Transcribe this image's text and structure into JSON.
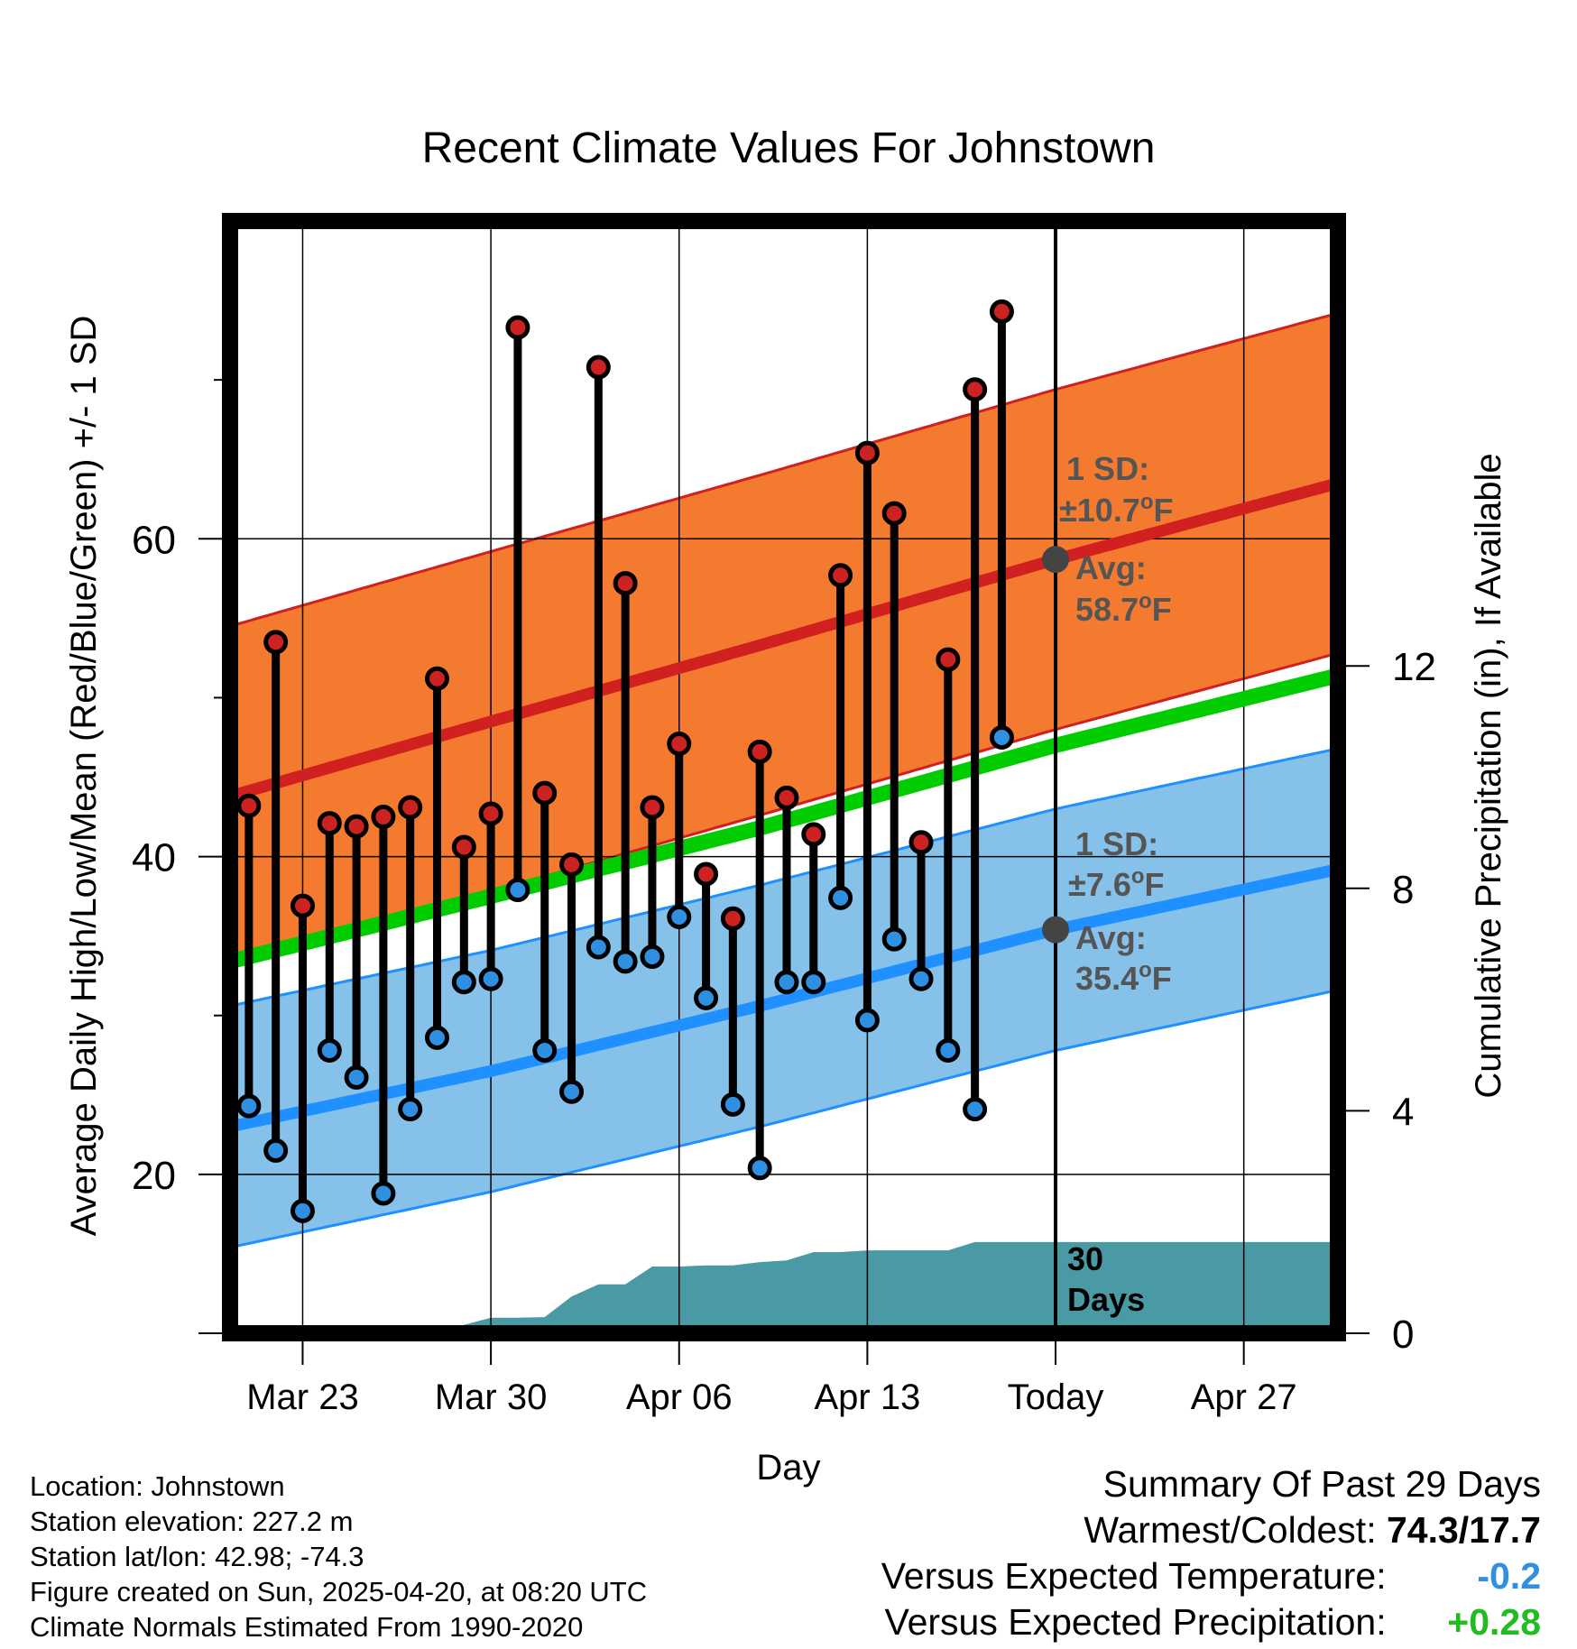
{
  "chart_data": {
    "type": "line",
    "title": "Recent Climate Values For Johnstown",
    "xlabel": "Day",
    "ylabel_left": "Average Daily High/Low/Mean (Red/Blue/Green) +/- 1 SD",
    "ylabel_right": "Cumulative Precipitation (in), If Available",
    "x_ticks": [
      {
        "day": 3,
        "label": "Mar 23"
      },
      {
        "day": 10,
        "label": "Mar 30"
      },
      {
        "day": 17,
        "label": "Apr 06"
      },
      {
        "day": 24,
        "label": "Apr 13"
      },
      {
        "day": 31,
        "label": "Today"
      },
      {
        "day": 38,
        "label": "Apr 27"
      }
    ],
    "x_range": [
      "2025-03-20",
      "2025-05-01"
    ],
    "xlim": [
      0.3,
      41.5
    ],
    "today_day": 31,
    "ylim_left": [
      10,
      80
    ],
    "y_ticks_left": [
      20,
      40,
      60
    ],
    "ylim_right": [
      0,
      20
    ],
    "y_ticks_right": [
      0,
      4,
      8,
      12
    ],
    "grid": true,
    "daily_observations": {
      "day": [
        1,
        2,
        3,
        4,
        5,
        6,
        7,
        8,
        9,
        10,
        11,
        12,
        13,
        14,
        15,
        16,
        17,
        18,
        19,
        20,
        21,
        22,
        23,
        24,
        25,
        26,
        27,
        28,
        29
      ],
      "high": [
        43.2,
        53.5,
        36.9,
        42.1,
        41.9,
        42.5,
        43.1,
        51.2,
        40.6,
        42.7,
        73.3,
        44.0,
        39.5,
        70.8,
        57.2,
        43.1,
        47.1,
        38.9,
        36.1,
        46.6,
        43.7,
        41.4,
        57.7,
        65.4,
        61.6,
        40.9,
        52.4,
        69.4,
        74.3
      ],
      "low": [
        24.3,
        21.5,
        17.7,
        27.8,
        26.1,
        18.8,
        24.1,
        28.6,
        32.1,
        32.3,
        37.9,
        27.8,
        25.2,
        34.3,
        33.4,
        33.7,
        36.2,
        31.1,
        24.4,
        20.4,
        32.1,
        32.1,
        37.4,
        29.7,
        34.8,
        32.3,
        27.8,
        24.1,
        47.5
      ]
    },
    "normals": {
      "day": [
        0.3,
        10,
        20,
        31,
        41.5
      ],
      "avg_high": [
        43.8,
        48.5,
        53.3,
        58.7,
        63.5
      ],
      "avg_low": [
        23.0,
        26.5,
        30.6,
        35.4,
        39.2
      ],
      "avg_mean": [
        33.4,
        37.5,
        41.8,
        47.0,
        51.4
      ],
      "sd_high": 10.7,
      "sd_low": 7.6
    },
    "cumulative_precipitation": {
      "day": [
        8,
        9,
        10,
        11,
        12,
        13,
        14,
        15,
        16,
        17,
        18,
        19,
        20,
        21,
        22,
        23,
        24,
        25,
        26,
        27,
        28,
        29,
        30,
        31,
        41.5
      ],
      "inches": [
        0.0,
        0.15,
        0.28,
        0.28,
        0.29,
        0.66,
        0.88,
        0.88,
        1.2,
        1.2,
        1.22,
        1.22,
        1.28,
        1.31,
        1.46,
        1.46,
        1.49,
        1.49,
        1.49,
        1.49,
        1.64,
        1.64,
        1.64,
        1.64,
        1.64
      ]
    },
    "annotations": {
      "high_sd": [
        "1 SD:",
        "±10.7",
        "o",
        "F"
      ],
      "high_avg": [
        "Avg:",
        "58.7",
        "o",
        "F"
      ],
      "low_sd": [
        "1 SD:",
        "±7.6",
        "o",
        "F"
      ],
      "low_avg": [
        "Avg:",
        "35.4",
        "o",
        "F"
      ],
      "days_label": [
        "30",
        "Days"
      ]
    },
    "colors": {
      "high_band": "#f47a2f",
      "high_line": "#d02020",
      "low_band": "#85c1e9",
      "low_line": "#1e90ff",
      "mean_line": "#00cc00",
      "precip": "#4a9aa5",
      "high_marker": "#cc2222",
      "low_marker": "#2f8fe0",
      "annotation_text": "#555555"
    }
  },
  "info": {
    "location": "Location: Johnstown",
    "elevation": "Station elevation: 227.2 m",
    "latlon": "Station lat/lon: 42.98; -74.3",
    "created": "Figure created on Sun, 2025-04-20, at 08:20 UTC",
    "normals": "Climate Normals Estimated From 1990-2020"
  },
  "summary": {
    "title": "Summary Of Past 29 Days",
    "warm_cold_label": "Warmest/Coldest:",
    "warm_cold_value": "74.3/17.7",
    "temp_label": "Versus Expected Temperature:",
    "temp_value": "-0.2",
    "temp_color": "#2f8fe0",
    "precip_label": "Versus Expected Precipitation:",
    "precip_value": "+0.28",
    "precip_color": "#22bb22"
  }
}
